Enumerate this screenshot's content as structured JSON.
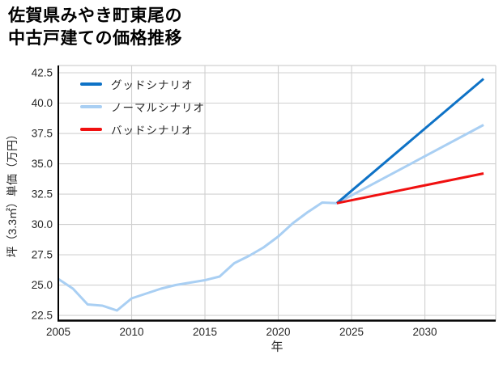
{
  "title": {
    "line1": "佐賀県みやき町東尾の",
    "line2": "中古戸建ての価格推移"
  },
  "chart_data": {
    "type": "line",
    "title": "佐賀県みやき町東尾の中古戸建ての価格推移",
    "xlabel": "年",
    "ylabel": "坪（3.3㎡）単価（万円）",
    "xlim": [
      2005,
      2034.83
    ],
    "ylim": [
      22.07,
      43.1
    ],
    "xticks": [
      2005,
      2010,
      2015,
      2020,
      2025,
      2030
    ],
    "yticks": [
      22.5,
      25.0,
      27.5,
      30.0,
      32.5,
      35.0,
      37.5,
      40.0,
      42.5
    ],
    "grid": true,
    "legend_position": "upper-left",
    "series": [
      {
        "name": "グッドシナリオ",
        "color": "#0e72c6",
        "x": [
          2024,
          2034
        ],
        "y": [
          31.75,
          42.0
        ]
      },
      {
        "name": "ノーマルシナリオ",
        "color": "#a9cff3",
        "x": [
          2005,
          2006,
          2007,
          2008,
          2009,
          2010,
          2011,
          2012,
          2013,
          2014,
          2015,
          2016,
          2017,
          2018,
          2019,
          2020,
          2021,
          2022,
          2023,
          2024,
          2034
        ],
        "y": [
          25.5,
          24.7,
          23.4,
          23.3,
          22.9,
          23.9,
          24.3,
          24.7,
          25.0,
          25.2,
          25.4,
          25.7,
          26.8,
          27.4,
          28.1,
          29.0,
          30.1,
          31.0,
          31.8,
          31.75,
          38.2
        ]
      },
      {
        "name": "バッドシナリオ",
        "color": "#f01010",
        "x": [
          2024,
          2034
        ],
        "y": [
          31.75,
          34.2
        ]
      }
    ],
    "colors": {
      "grid": "#d0d0d0",
      "spine_main": "#000000",
      "spine_minor": "#d0d0d0",
      "text": "#262626"
    }
  }
}
